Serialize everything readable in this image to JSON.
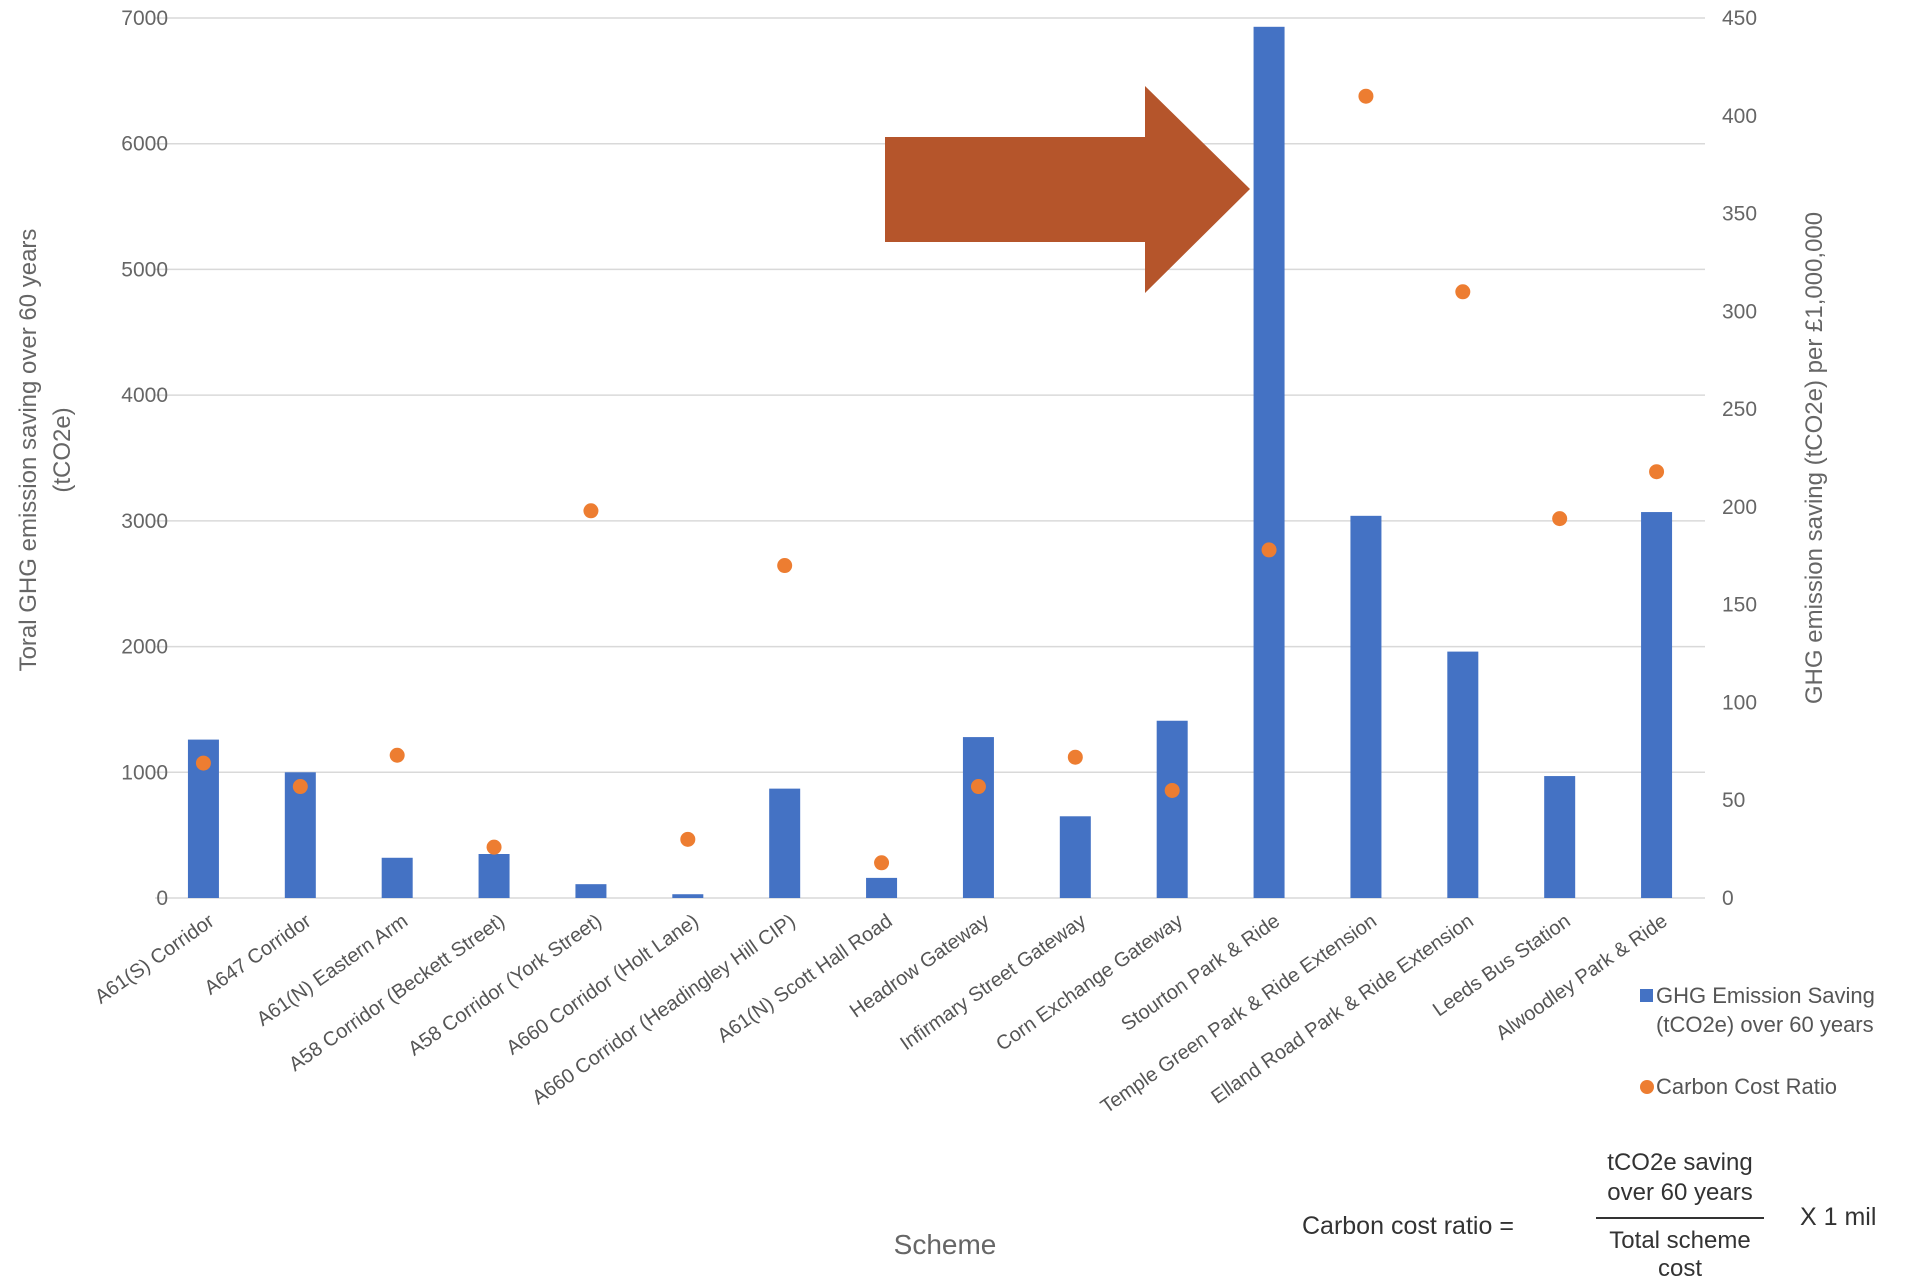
{
  "chart_data": {
    "type": "bar",
    "title": "",
    "xlabel": "Scheme",
    "ylabel": "Toral GHG emission saving over 60 years (tCO2e)",
    "ylabel_right": "GHG emission saving (tCO2e) per £1,000,000",
    "ylim": [
      0,
      7000
    ],
    "ylim_right": [
      0,
      450
    ],
    "yticks": [
      0,
      1000,
      2000,
      3000,
      4000,
      5000,
      6000,
      7000
    ],
    "yticks_right": [
      0,
      50,
      100,
      150,
      200,
      250,
      300,
      350,
      400,
      450
    ],
    "grid": true,
    "legend_position": "bottom-right",
    "categories": [
      "A61(S) Corridor",
      "A647 Corridor",
      "A61(N) Eastern Arm",
      "A58 Corridor (Beckett Street)",
      "A58 Corridor (York Street)",
      "A660 Corridor (Holt Lane)",
      "A660 Corridor (Headingley Hill CIP)",
      "A61(N) Scott Hall Road",
      "Headrow Gateway",
      "Infirmary Street Gateway",
      "Corn Exchange Gateway",
      "Stourton Park & Ride",
      "Temple Green Park & Ride Extension",
      "Elland Road Park & Ride Extension",
      "Leeds Bus Station",
      "Alwoodley Park & Ride"
    ],
    "series": [
      {
        "name": "GHG Emission Saving (tCO2e) over 60 years",
        "name_lines": [
          "GHG Emission Saving",
          "(tCO2e) over 60 years"
        ],
        "kind": "bar",
        "axis": "left",
        "color": "#4472C4",
        "values": [
          1260,
          1000,
          320,
          350,
          110,
          30,
          870,
          160,
          1280,
          650,
          1410,
          6930,
          3040,
          1960,
          970,
          3070
        ]
      },
      {
        "name": "Carbon Cost Ratio",
        "kind": "scatter",
        "axis": "right",
        "color": "#ED7D31",
        "values": [
          69,
          57,
          73,
          26,
          198,
          30,
          170,
          18,
          57,
          72,
          55,
          178,
          410,
          310,
          194,
          218
        ]
      }
    ]
  },
  "annotation": {
    "arrow_color": "#B5552B",
    "arrow_points_to": "Stourton Park & Ride"
  },
  "formula": {
    "label": "Carbon cost ratio =",
    "numerator": [
      "tCO2e saving",
      "over 60 years"
    ],
    "denominator": [
      "Total scheme",
      "cost"
    ],
    "multiplier": "X 1 mil"
  }
}
